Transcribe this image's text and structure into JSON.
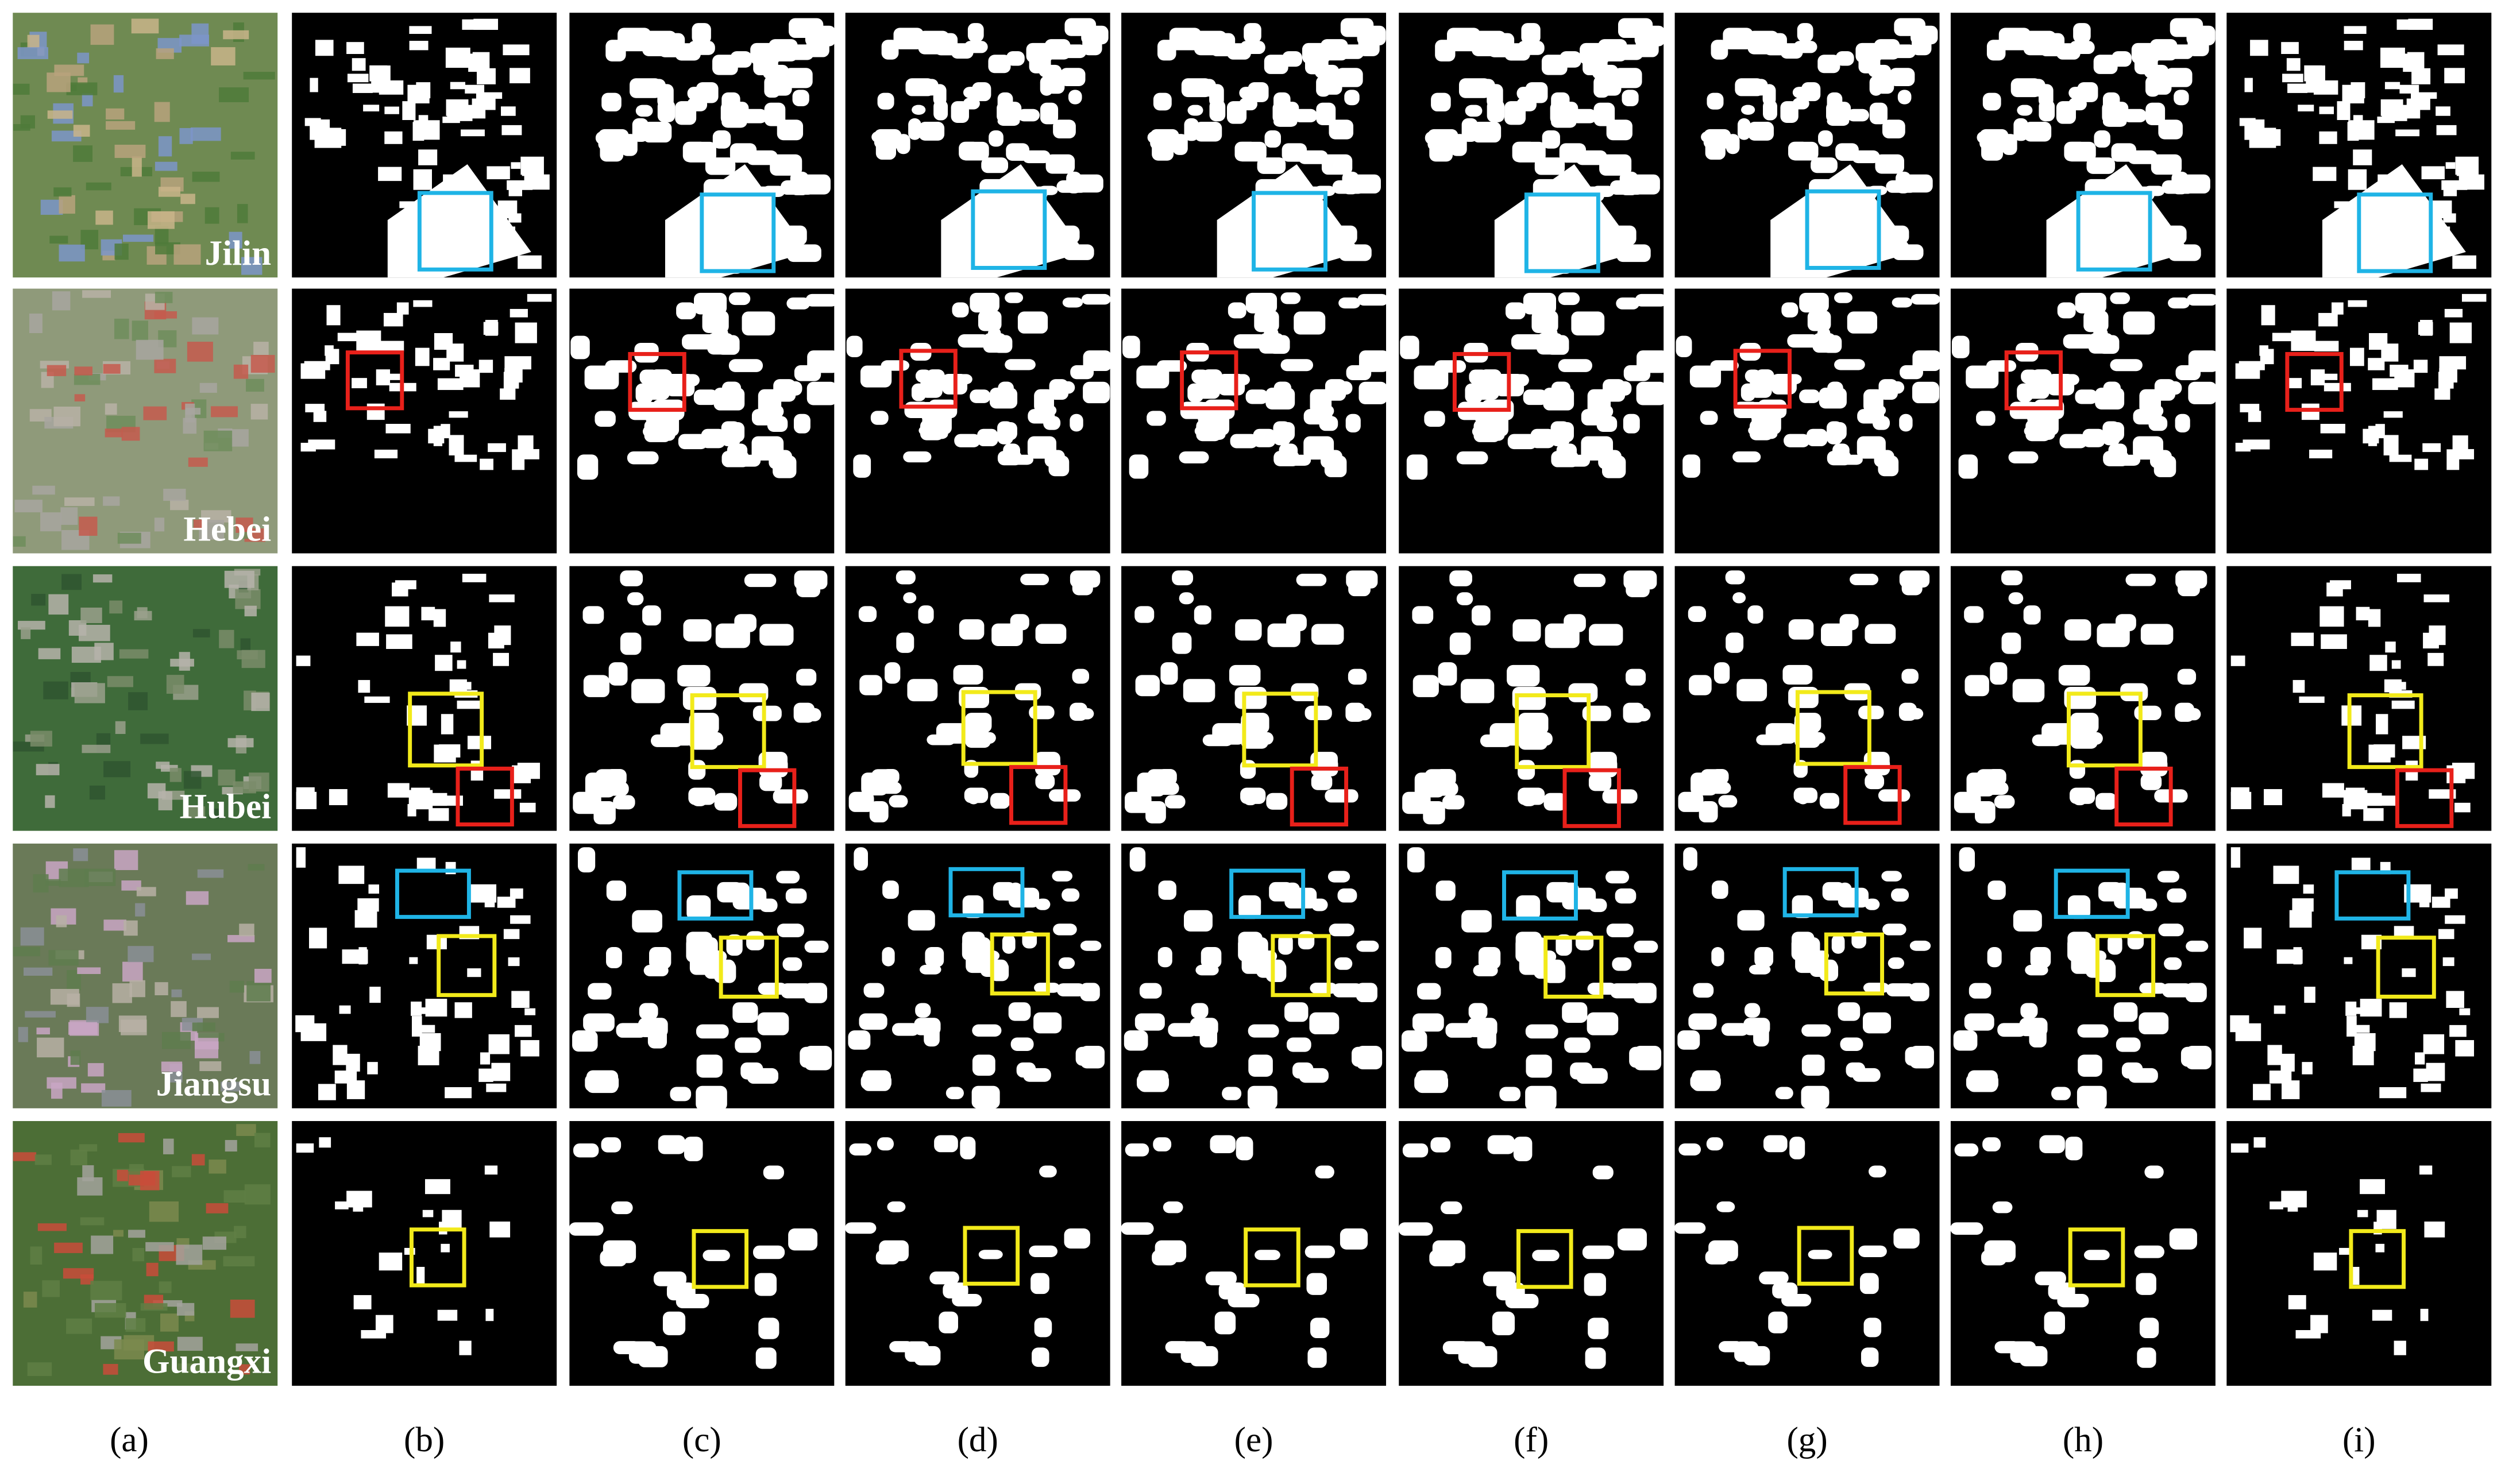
{
  "rows": [
    {
      "label": "Jilin"
    },
    {
      "label": "Hebei"
    },
    {
      "label": "Hubei"
    },
    {
      "label": "Jiangsu"
    },
    {
      "label": "Guangxi"
    }
  ],
  "columns": [
    "(a)",
    "(b)",
    "(c)",
    "(d)",
    "(e)",
    "(f)",
    "(g)",
    "(h)",
    "(i)"
  ]
}
